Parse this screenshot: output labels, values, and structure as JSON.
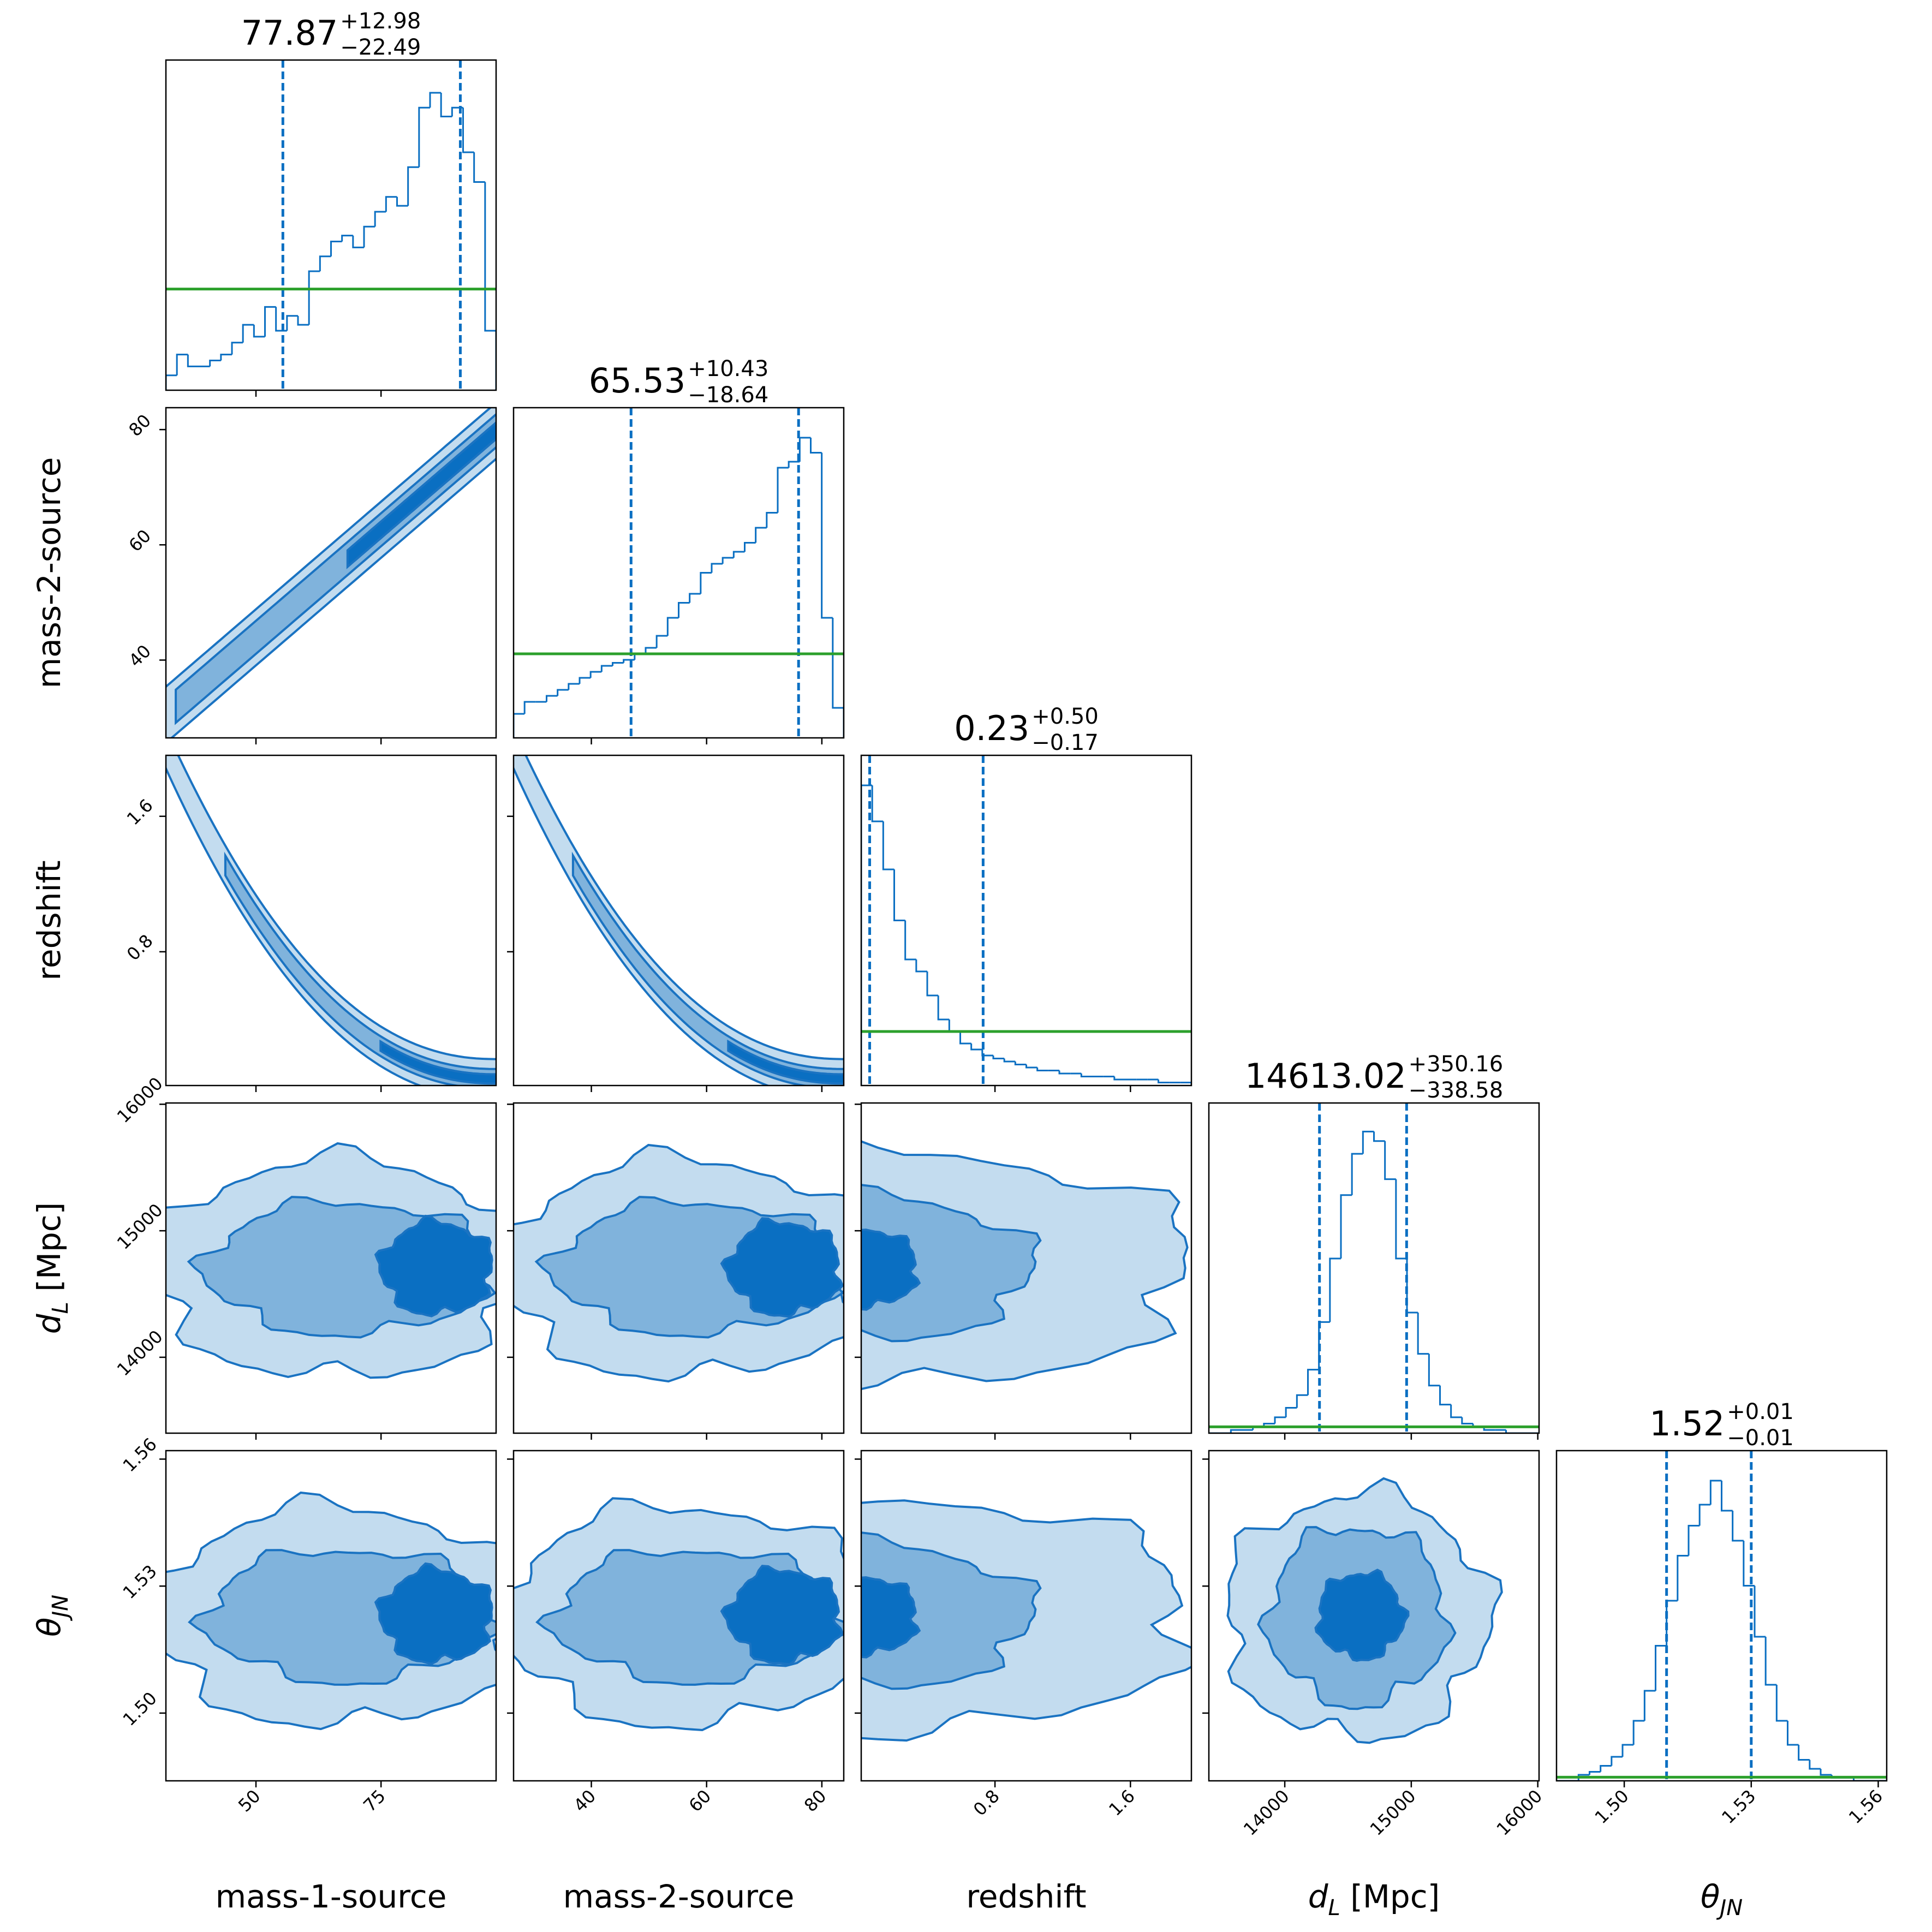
{
  "chart_data": {
    "type": "corner",
    "color": "#0a6fc2",
    "prior_color": "#2ca02c",
    "parameters": [
      {
        "label": "mass-1-source",
        "lim": [
          32,
          98
        ],
        "ticks": [
          50,
          75
        ],
        "title": [
          "77.87",
          "+12.98",
          "−22.49"
        ],
        "quantiles": [
          55.38,
          90.85
        ],
        "bins": [
          32,
          34.2,
          36.4,
          38.6,
          40.8,
          43,
          45.2,
          47.4,
          49.6,
          51.8,
          54,
          56.2,
          58.4,
          60.6,
          62.8,
          65,
          67.2,
          69.4,
          71.6,
          73.8,
          76,
          78.2,
          80.4,
          82.6,
          84.8,
          87,
          89.2,
          91.4,
          93.6,
          95.8,
          98
        ],
        "counts": [
          5,
          12,
          8,
          8,
          10,
          12,
          16,
          22,
          18,
          28,
          20,
          25,
          22,
          40,
          45,
          50,
          52,
          48,
          55,
          60,
          65,
          62,
          75,
          95,
          100,
          92,
          95,
          80,
          70,
          20
        ],
        "hist_ylim": [
          0,
          111
        ],
        "prior": 34
      },
      {
        "label": "mass-2-source",
        "lim": [
          26.5,
          83.8
        ],
        "ticks": [
          40,
          60,
          80
        ],
        "title": [
          "65.53",
          "+10.43",
          "−18.64"
        ],
        "quantiles": [
          46.89,
          75.96
        ],
        "bins": [
          26.5,
          28.41,
          30.32,
          32.23,
          34.14,
          36.05,
          37.96,
          39.87,
          41.78,
          43.69,
          45.6,
          47.51,
          49.42,
          51.33,
          53.24,
          55.15,
          57.06,
          58.97,
          60.88,
          62.79,
          64.7,
          66.61,
          68.52,
          70.43,
          72.34,
          74.25,
          76.16,
          78.07,
          79.98,
          81.89,
          83.8
        ],
        "counts": [
          8,
          12,
          12,
          14,
          16,
          18,
          20,
          22,
          24,
          25,
          26,
          28,
          30,
          34,
          40,
          45,
          48,
          55,
          58,
          60,
          62,
          65,
          70,
          75,
          90,
          92,
          100,
          95,
          40,
          10
        ],
        "hist_ylim": [
          0,
          110
        ],
        "prior": 28
      },
      {
        "label": "redshift",
        "lim": [
          0.01,
          1.96
        ],
        "ticks": [
          0.8,
          1.6
        ],
        "title": [
          "0.23",
          "+0.50",
          "−0.17"
        ],
        "quantiles": [
          0.06,
          0.73
        ],
        "bins": [
          0.01,
          0.075,
          0.14,
          0.205,
          0.27,
          0.335,
          0.4,
          0.465,
          0.53,
          0.595,
          0.66,
          0.725,
          0.79,
          0.855,
          0.92,
          0.985,
          1.05,
          1.115,
          1.18,
          1.245,
          1.31,
          1.375,
          1.44,
          1.505,
          1.57,
          1.635,
          1.7,
          1.765,
          1.83,
          1.895,
          1.96
        ],
        "counts": [
          100,
          88,
          72,
          55,
          42,
          38,
          30,
          22,
          18,
          14,
          12,
          10,
          9,
          8,
          7,
          6,
          5,
          5,
          4,
          4,
          3,
          3,
          3,
          2,
          2,
          2,
          2,
          1,
          1,
          1
        ],
        "hist_ylim": [
          0,
          110
        ],
        "prior": 18
      },
      {
        "label_main": "d",
        "label_sub": "L",
        "label_tail": " [Mpc]",
        "lim": [
          13400,
          16010
        ],
        "ticks": [
          14000,
          15000,
          16000
        ],
        "title": [
          "14613.02",
          "+350.16",
          "−338.58"
        ],
        "quantiles": [
          14274.44,
          14963.18
        ],
        "bins": [
          13400,
          13487,
          13574,
          13661,
          13748,
          13835,
          13922,
          14009,
          14096,
          14183,
          14270,
          14357,
          14444,
          14531,
          14618,
          14705,
          14792,
          14879,
          14966,
          15053,
          15140,
          15227,
          15314,
          15401,
          15488,
          15575,
          15662,
          15749,
          15836,
          15923,
          16010
        ],
        "counts": [
          0,
          0,
          1,
          1,
          2,
          3,
          5,
          8,
          12,
          20,
          35,
          55,
          75,
          88,
          95,
          92,
          80,
          55,
          38,
          25,
          15,
          9,
          5,
          3,
          2,
          1,
          1,
          0,
          0,
          0
        ],
        "hist_ylim": [
          0,
          104
        ],
        "prior": 2
      },
      {
        "label_main": "θ",
        "label_sub": "JN",
        "lim": [
          1.484,
          1.562
        ],
        "ticks": [
          {
            "value": 1.5,
            "label": "1.50"
          },
          {
            "value": 1.53,
            "label": "1.53"
          },
          {
            "value": 1.56,
            "label": "1.56"
          }
        ],
        "title": [
          "1.52",
          "+0.01",
          "−0.01"
        ],
        "quantiles": [
          1.51,
          1.53
        ],
        "bins": [
          1.484,
          1.4866,
          1.4892,
          1.4918,
          1.4944,
          1.497,
          1.4996,
          1.5022,
          1.5048,
          1.5074,
          1.51,
          1.5126,
          1.5152,
          1.5178,
          1.5204,
          1.523,
          1.5256,
          1.5282,
          1.5308,
          1.5334,
          1.536,
          1.5386,
          1.5412,
          1.5438,
          1.5464,
          1.549,
          1.5516,
          1.5542,
          1.5568,
          1.5594,
          1.562
        ],
        "counts": [
          0,
          0,
          2,
          3,
          5,
          8,
          12,
          20,
          30,
          45,
          60,
          75,
          85,
          92,
          100,
          90,
          80,
          65,
          48,
          32,
          20,
          12,
          7,
          4,
          2,
          1,
          1,
          0,
          0,
          0
        ],
        "hist_ylim": [
          0,
          110
        ],
        "prior": 1.2
      }
    ]
  }
}
